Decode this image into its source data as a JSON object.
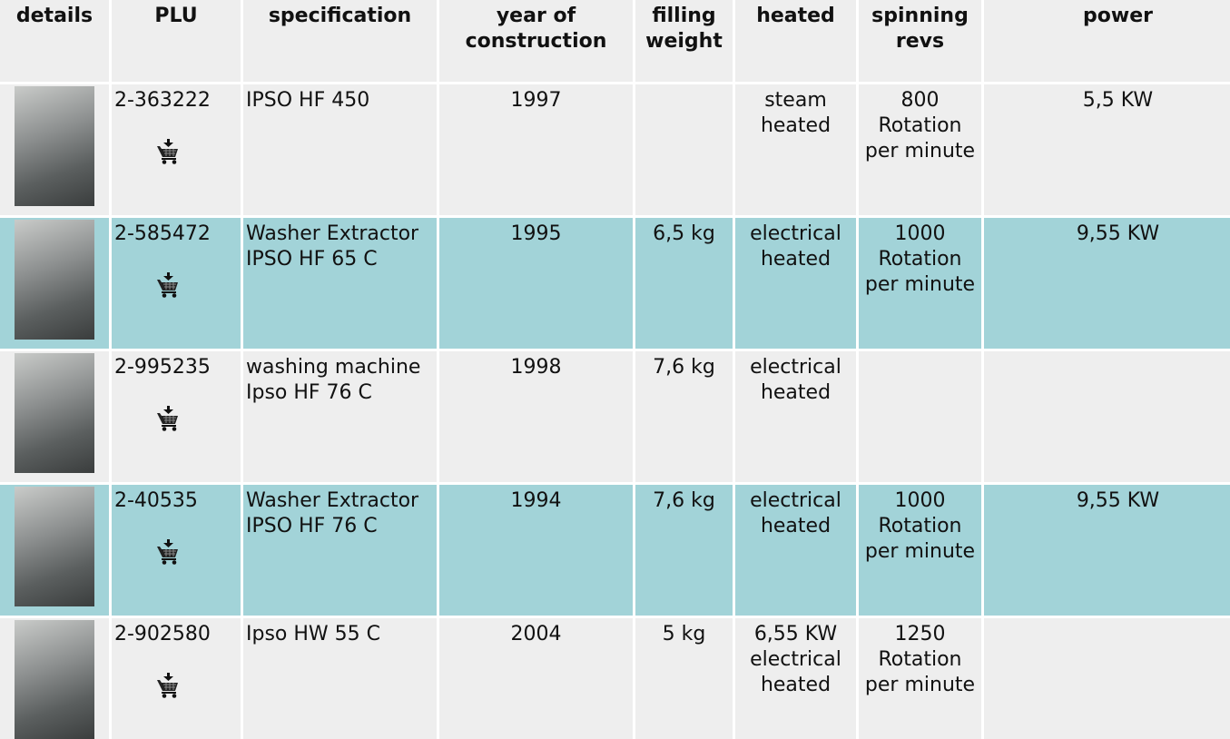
{
  "table": {
    "headers": [
      "details",
      "PLU",
      "specification",
      "year of construction",
      "filling weight",
      "heated",
      "spinning revs",
      "power"
    ],
    "rows": [
      {
        "plu": "2-363222",
        "specification": "IPSO HF 450",
        "year": 1997,
        "heated": "steam heated",
        "spinning_revs": "800 Rotation per minute",
        "power": "5,5 KW"
      },
      {
        "plu": "2-585472",
        "specification": "Washer Extractor IPSO HF 65 C",
        "year": 1995,
        "filling_weight": "6,5 kg",
        "heated": "electrical heated",
        "spinning_revs": "1000 Rotation per minute",
        "power": "9,55 KW"
      },
      {
        "plu": "2-995235",
        "specification": "washing machine Ipso HF 76 C",
        "year": 1998,
        "filling_weight": "7,6 kg",
        "heated": "electrical heated"
      },
      {
        "plu": "2-40535",
        "specification": "Washer Extractor IPSO HF 76 C",
        "year": 1994,
        "filling_weight": "7,6 kg",
        "heated": "electrical heated",
        "spinning_revs": "1000 Rotation per minute",
        "power": "9,55 KW"
      },
      {
        "plu": "2-902580",
        "specification": "Ipso HW 55 C",
        "year": 2004,
        "filling_weight": "5 kg",
        "heated": "6,55 KW electrical heated",
        "spinning_revs": "1250 Rotation per minute"
      }
    ]
  }
}
